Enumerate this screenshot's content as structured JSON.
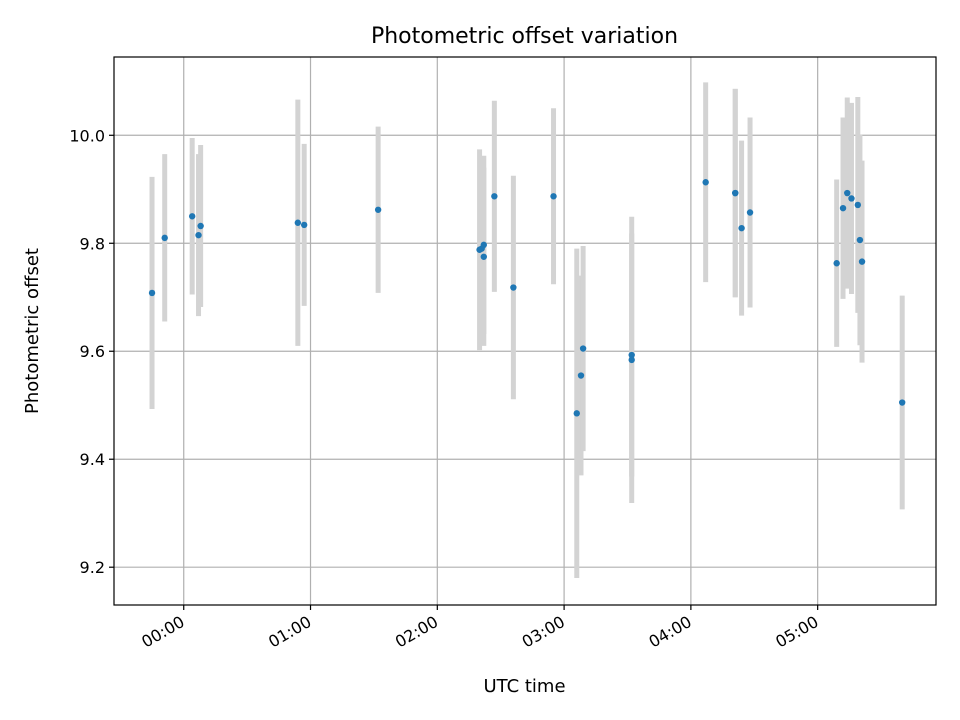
{
  "chart_data": {
    "type": "scatter",
    "title": "Photometric offset variation",
    "xlabel": "UTC time",
    "ylabel": "Photometric offset",
    "x_ticks": [
      "00:00",
      "01:00",
      "02:00",
      "03:00",
      "04:00",
      "05:00"
    ],
    "y_ticks": [
      "9.2",
      "9.4",
      "9.6",
      "9.8",
      "10.0"
    ],
    "xlim": [
      "23:27",
      "05:56"
    ],
    "ylim": [
      9.13,
      10.145
    ],
    "grid": true,
    "marker_color": "#1f77b4",
    "errorbar_color": "#d3d3d3",
    "points": [
      {
        "t": "23:45",
        "y": 9.708,
        "err": 0.215
      },
      {
        "t": "23:51",
        "y": 9.81,
        "err": 0.155
      },
      {
        "t": "00:04",
        "y": 9.85,
        "err": 0.145
      },
      {
        "t": "00:07",
        "y": 9.815,
        "err": 0.15
      },
      {
        "t": "00:08",
        "y": 9.832,
        "err": 0.15
      },
      {
        "t": "00:54",
        "y": 9.838,
        "err": 0.228
      },
      {
        "t": "00:57",
        "y": 9.834,
        "err": 0.15
      },
      {
        "t": "01:32",
        "y": 9.862,
        "err": 0.154
      },
      {
        "t": "02:20",
        "y": 9.788,
        "err": 0.186
      },
      {
        "t": "02:21",
        "y": 9.79,
        "err": 0.17
      },
      {
        "t": "02:22",
        "y": 9.797,
        "err": 0.165
      },
      {
        "t": "02:22",
        "y": 9.775,
        "err": 0.165
      },
      {
        "t": "02:27",
        "y": 9.887,
        "err": 0.177
      },
      {
        "t": "02:36",
        "y": 9.718,
        "err": 0.207
      },
      {
        "t": "02:55",
        "y": 9.887,
        "err": 0.163
      },
      {
        "t": "03:06",
        "y": 9.485,
        "err": 0.305
      },
      {
        "t": "03:08",
        "y": 9.555,
        "err": 0.185
      },
      {
        "t": "03:09",
        "y": 9.605,
        "err": 0.19
      },
      {
        "t": "03:32",
        "y": 9.593,
        "err": 0.225
      },
      {
        "t": "03:32",
        "y": 9.584,
        "err": 0.265
      },
      {
        "t": "04:07",
        "y": 9.913,
        "err": 0.185
      },
      {
        "t": "04:21",
        "y": 9.893,
        "err": 0.193
      },
      {
        "t": "04:21",
        "y": 9.893,
        "err": 0.193
      },
      {
        "t": "04:24",
        "y": 9.828,
        "err": 0.162
      },
      {
        "t": "04:28",
        "y": 9.857,
        "err": 0.176
      },
      {
        "t": "05:09",
        "y": 9.763,
        "err": 0.155
      },
      {
        "t": "05:12",
        "y": 9.865,
        "err": 0.168
      },
      {
        "t": "05:14",
        "y": 9.893,
        "err": 0.177
      },
      {
        "t": "05:16",
        "y": 9.883,
        "err": 0.177
      },
      {
        "t": "05:19",
        "y": 9.871,
        "err": 0.2
      },
      {
        "t": "05:20",
        "y": 9.806,
        "err": 0.195
      },
      {
        "t": "05:21",
        "y": 9.766,
        "err": 0.187
      },
      {
        "t": "05:40",
        "y": 9.505,
        "err": 0.198
      }
    ]
  }
}
